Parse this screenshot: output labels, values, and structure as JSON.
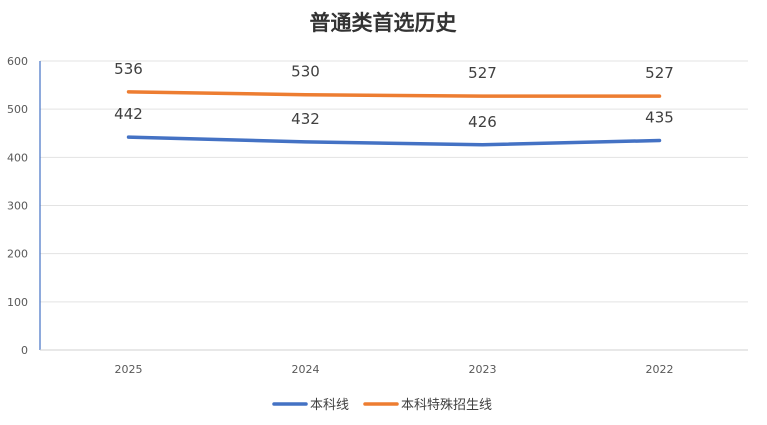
{
  "chart_data": {
    "type": "line",
    "title": "普通类首选历史",
    "categories": [
      "2025",
      "2024",
      "2023",
      "2022"
    ],
    "yticks": [
      "0",
      "100",
      "200",
      "300",
      "400",
      "500",
      "600"
    ],
    "ylim": [
      0,
      600
    ],
    "grid": true,
    "legend_position": "bottom",
    "series": [
      {
        "name": "本科线",
        "values": [
          442,
          432,
          426,
          435
        ],
        "labels": [
          "442",
          "432",
          "426",
          "435"
        ],
        "color": "#4472C4"
      },
      {
        "name": "本科特殊招生线",
        "values": [
          536,
          530,
          527,
          527
        ],
        "labels": [
          "536",
          "530",
          "527",
          "527"
        ],
        "color": "#ED7D31"
      }
    ]
  }
}
